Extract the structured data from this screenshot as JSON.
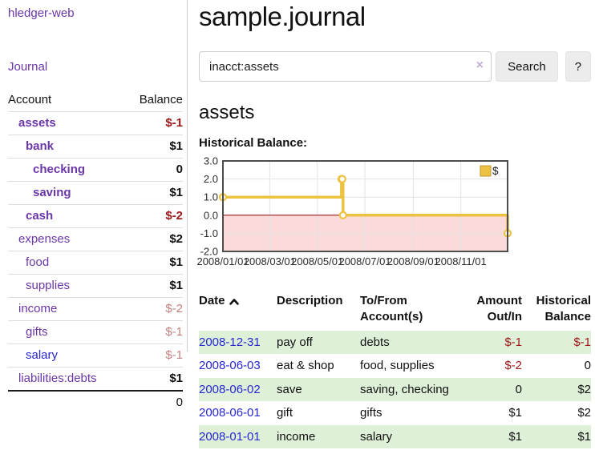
{
  "app": {
    "brand": "hledger-web",
    "nav_journal": "Journal"
  },
  "sidebar": {
    "headers": {
      "account": "Account",
      "balance": "Balance"
    },
    "rows": [
      {
        "name": "assets",
        "balance": "$-1",
        "level": 1,
        "bold": true,
        "neg": "strong",
        "link": "purple"
      },
      {
        "name": "bank",
        "balance": "$1",
        "level": 2,
        "bold": true,
        "neg": "none",
        "link": "purple"
      },
      {
        "name": "checking",
        "balance": "0",
        "level": 3,
        "bold": true,
        "neg": "none",
        "link": "purple"
      },
      {
        "name": "saving",
        "balance": "$1",
        "level": 3,
        "bold": true,
        "neg": "none",
        "link": "purple"
      },
      {
        "name": "cash",
        "balance": "$-2",
        "level": 2,
        "bold": true,
        "neg": "strong",
        "link": "purple"
      },
      {
        "name": "expenses",
        "balance": "$2",
        "level": 1,
        "bold": false,
        "neg": "none",
        "link": "purple"
      },
      {
        "name": "food",
        "balance": "$1",
        "level": 2,
        "bold": false,
        "neg": "none",
        "link": "purple"
      },
      {
        "name": "supplies",
        "balance": "$1",
        "level": 2,
        "bold": false,
        "neg": "none",
        "link": "purple"
      },
      {
        "name": "income",
        "balance": "$-2",
        "level": 1,
        "bold": false,
        "neg": "light",
        "link": "purple"
      },
      {
        "name": "gifts",
        "balance": "$-1",
        "level": 2,
        "bold": false,
        "neg": "light",
        "link": "purple"
      },
      {
        "name": "salary",
        "balance": "$-1",
        "level": 2,
        "bold": false,
        "neg": "light",
        "link": "blue"
      },
      {
        "name": "liabilities:debts",
        "balance": "$1",
        "level": 1,
        "bold": false,
        "neg": "none",
        "link": "purple"
      }
    ],
    "total": "0"
  },
  "header": {
    "title": "sample.journal"
  },
  "search": {
    "value": "inacct:assets",
    "clear_icon": "×",
    "button_label": "Search",
    "help_label": "?"
  },
  "account_page": {
    "title": "assets",
    "chart_label": "Historical Balance:"
  },
  "chart_data": {
    "type": "line",
    "style": "steps",
    "title": "Historical Balance:",
    "series": [
      {
        "name": "$",
        "color": "#edc240",
        "points": [
          [
            "2008-01-01",
            1
          ],
          [
            "2008-06-01",
            2
          ],
          [
            "2008-06-02",
            2
          ],
          [
            "2008-06-03",
            0
          ],
          [
            "2008-12-31",
            -1
          ]
        ]
      }
    ],
    "xlim": [
      "2008-01-01",
      "2008-12-31"
    ],
    "ylim": [
      -2,
      3
    ],
    "x_ticks": [
      "2008/01/01",
      "2008/03/01",
      "2008/05/01",
      "2008/07/01",
      "2008/09/01",
      "2008/11/01"
    ],
    "y_ticks": [
      3.0,
      2.0,
      1.0,
      0.0,
      -1.0,
      -2.0
    ],
    "grid": true,
    "negative_region_color": "#fbdada",
    "zero_line_color": "#8b0000",
    "legend": {
      "position": "top-right",
      "label": "$"
    }
  },
  "register": {
    "headers": {
      "date": "Date",
      "description": "Description",
      "accounts": "To/From Account(s)",
      "amount": "Amount Out/In",
      "balance": "Historical Balance"
    },
    "rows": [
      {
        "date": "2008-12-31",
        "description": "pay off",
        "accounts": "debts",
        "amount": "$-1",
        "amount_neg": true,
        "balance": "$-1",
        "balance_neg": true,
        "striped": true
      },
      {
        "date": "2008-06-03",
        "description": "eat & shop",
        "accounts": "food, supplies",
        "amount": "$-2",
        "amount_neg": true,
        "balance": "0",
        "balance_neg": false,
        "striped": false
      },
      {
        "date": "2008-06-02",
        "description": "save",
        "accounts": "saving, checking",
        "amount": "0",
        "amount_neg": false,
        "balance": "$2",
        "balance_neg": false,
        "striped": true
      },
      {
        "date": "2008-06-01",
        "description": "gift",
        "accounts": "gifts",
        "amount": "$1",
        "amount_neg": false,
        "balance": "$2",
        "balance_neg": false,
        "striped": false
      },
      {
        "date": "2008-01-01",
        "description": "income",
        "accounts": "salary",
        "amount": "$1",
        "amount_neg": false,
        "balance": "$1",
        "balance_neg": false,
        "striped": true
      }
    ]
  }
}
